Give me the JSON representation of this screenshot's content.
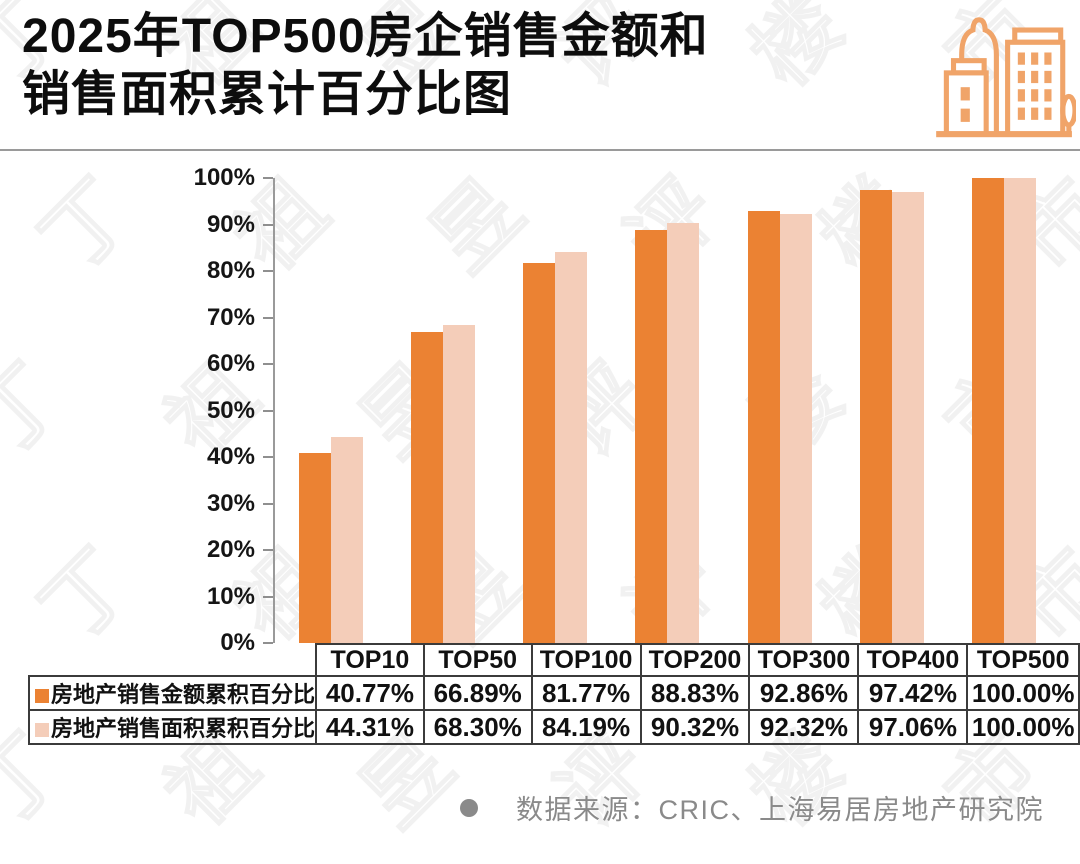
{
  "title": {
    "line1": "2025年TOP500房企销售金额和",
    "line2": "销售面积累计百分比图"
  },
  "watermark": {
    "text": "丁祖昱评楼市"
  },
  "chart_data": {
    "type": "bar",
    "categories": [
      "TOP10",
      "TOP50",
      "TOP100",
      "TOP200",
      "TOP300",
      "TOP400",
      "TOP500"
    ],
    "series": [
      {
        "name": "房地产销售金额累积百分比",
        "color": "#EB8233",
        "values": [
          40.77,
          66.89,
          81.77,
          88.83,
          92.86,
          97.42,
          100.0
        ]
      },
      {
        "name": "房地产销售面积累积百分比",
        "color": "#F4CDB9",
        "values": [
          44.31,
          68.3,
          84.19,
          90.32,
          92.32,
          97.06,
          100.0
        ]
      }
    ],
    "ylim": [
      0,
      100
    ],
    "yticks": [
      0,
      10,
      20,
      30,
      40,
      50,
      60,
      70,
      80,
      90,
      100
    ],
    "ytick_suffix": "%",
    "grid": false,
    "legend_position": "table-left"
  },
  "table": {
    "columns": [
      "TOP10",
      "TOP50",
      "TOP100",
      "TOP200",
      "TOP300",
      "TOP400",
      "TOP500"
    ],
    "rows": [
      {
        "label": "房地产销售金额累积百分比",
        "values": [
          "40.77%",
          "66.89%",
          "81.77%",
          "88.83%",
          "92.86%",
          "97.42%",
          "100.00%"
        ]
      },
      {
        "label": "房地产销售面积累积百分比",
        "values": [
          "44.31%",
          "68.30%",
          "84.19%",
          "90.32%",
          "92.32%",
          "97.06%",
          "100.00%"
        ]
      }
    ]
  },
  "footer": {
    "source": "数据来源：CRIC、上海易居房地产研究院"
  },
  "icon": {
    "name": "buildings-icon"
  },
  "colors": {
    "bar_amount": "#EB8233",
    "bar_area": "#F4CDB9",
    "icon": "#F0A469",
    "divider": "#9A9A9A",
    "axis": "#8F8F8F",
    "table_border": "#3B3B3B",
    "footer_text": "#8A8A8A",
    "title_text": "#0D0D0D"
  }
}
